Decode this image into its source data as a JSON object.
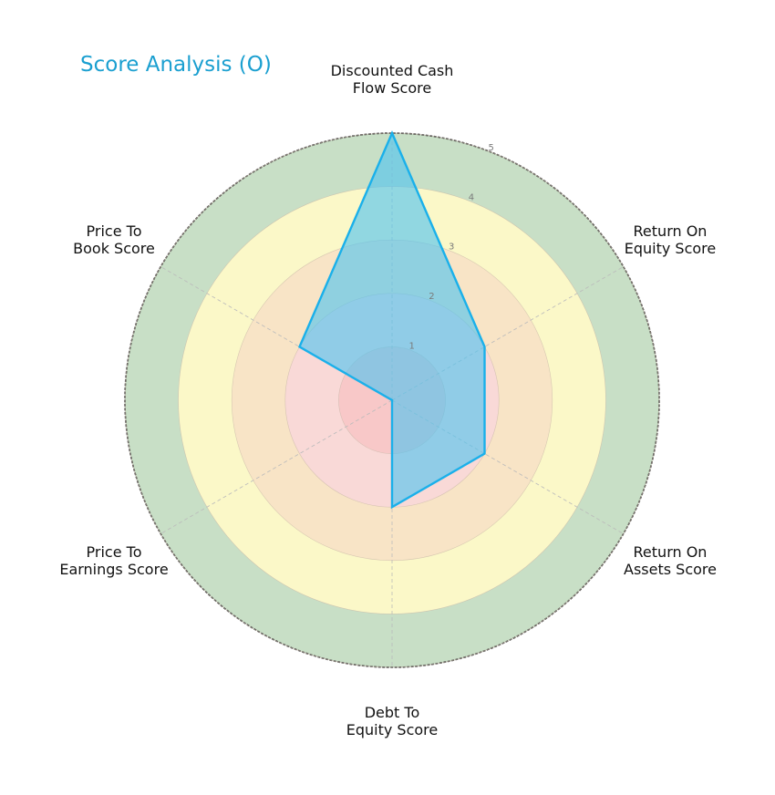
{
  "chart_data": {
    "type": "radar",
    "title": "Score Analysis (O)",
    "title_color": "#1a9fd0",
    "categories": [
      "Discounted Cash Flow Score",
      "Return On Equity Score",
      "Return On Assets Score",
      "Debt To Equity Score",
      "Price To Earnings Score",
      "Price To Book Score"
    ],
    "category_lines": [
      [
        "Discounted Cash",
        "Flow Score"
      ],
      [
        "Return On",
        "Equity Score"
      ],
      [
        "Return On",
        "Assets Score"
      ],
      [
        "Debt To",
        "Equity Score"
      ],
      [
        "Price To",
        "Earnings Score"
      ],
      [
        "Price To",
        "Book Score"
      ]
    ],
    "series": [
      {
        "name": "O",
        "values": [
          5,
          2,
          2,
          2,
          0,
          2
        ],
        "color": "#1ab0ea",
        "fill": "#4fc3f0"
      }
    ],
    "rlim": [
      0,
      5
    ],
    "radial_ticks": [
      1,
      2,
      3,
      4,
      5
    ],
    "bands": [
      {
        "from": 0,
        "to": 1,
        "color": "#f8c8c8"
      },
      {
        "from": 1,
        "to": 2,
        "color": "#f9d9d7"
      },
      {
        "from": 2,
        "to": 3,
        "color": "#f8e4c6"
      },
      {
        "from": 3,
        "to": 4,
        "color": "#fbf8c8"
      },
      {
        "from": 4,
        "to": 5,
        "color": "#c8dfc6"
      }
    ],
    "grid": true
  }
}
